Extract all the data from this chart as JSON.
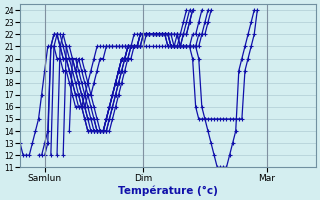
{
  "title": "",
  "xlabel": "Température (°c)",
  "ylabel": "",
  "xlim": [
    0,
    96
  ],
  "ylim": [
    11,
    24.5
  ],
  "yticks": [
    11,
    12,
    13,
    14,
    15,
    16,
    17,
    18,
    19,
    20,
    21,
    22,
    23,
    24
  ],
  "day_labels": [
    "Samlun",
    "Dim",
    "Mar"
  ],
  "day_positions": [
    8,
    40,
    80
  ],
  "background_color": "#d4eef0",
  "grid_color": "#b0ccd4",
  "line_color": "#1010aa",
  "marker": "+",
  "markersize": 3,
  "linewidth": 0.9,
  "series": [
    {
      "x_start": 0,
      "y": [
        13,
        12,
        12,
        12,
        13,
        14,
        15,
        17,
        19,
        21,
        21,
        21,
        20,
        20,
        19,
        19,
        18,
        17,
        16,
        16,
        16,
        17,
        18,
        19,
        20,
        21,
        21,
        21,
        21,
        21,
        21,
        21,
        21,
        21,
        21,
        21,
        21,
        21,
        21,
        21,
        21,
        21,
        21,
        21,
        21,
        21,
        21,
        21,
        21,
        21,
        21,
        21,
        21,
        21,
        21,
        21,
        21,
        21,
        20,
        16,
        15,
        14,
        13,
        12,
        11,
        11,
        11,
        11,
        12,
        13,
        14,
        19,
        20,
        21,
        22,
        23,
        24
      ]
    },
    {
      "x_start": 6,
      "y": [
        12,
        12,
        13,
        14,
        21,
        22,
        22,
        21,
        20,
        20,
        19,
        18,
        17,
        17,
        16,
        16,
        17,
        17,
        18,
        19,
        20,
        20,
        21,
        21,
        21,
        21,
        21,
        21,
        21,
        21,
        21,
        22,
        22,
        22,
        22,
        22,
        22,
        22,
        22,
        22,
        22,
        22,
        21,
        21,
        21,
        21,
        21,
        21,
        21,
        21,
        20,
        16,
        15,
        15,
        15,
        15,
        15,
        15,
        15,
        15,
        15,
        15,
        15,
        15,
        15,
        15,
        15,
        19,
        20,
        21,
        22,
        24
      ]
    },
    {
      "x_start": 8,
      "y": [
        12,
        13,
        21,
        22,
        22,
        21,
        20,
        20,
        19,
        18,
        17,
        16,
        16,
        15,
        14,
        14,
        14,
        14,
        14,
        14,
        14,
        14,
        15,
        16,
        17,
        18,
        19,
        20,
        20,
        21,
        21,
        21,
        21,
        22,
        22,
        22,
        22,
        22,
        22,
        22,
        22,
        22,
        22,
        22,
        21,
        21,
        21,
        21,
        21,
        21,
        21,
        22,
        22,
        23,
        24
      ]
    },
    {
      "x_start": 10,
      "y": [
        12,
        21,
        22,
        22,
        21,
        20,
        20,
        19,
        18,
        17,
        16,
        15,
        14,
        14,
        14,
        14,
        14,
        14,
        14,
        15,
        16,
        17,
        18,
        19,
        20,
        20,
        21,
        21,
        21,
        21,
        22,
        22,
        22,
        22,
        22,
        22,
        22,
        22,
        22,
        22,
        22,
        22,
        21,
        21,
        21,
        21,
        21,
        21,
        22,
        22,
        23,
        24
      ]
    },
    {
      "x_start": 12,
      "y": [
        12,
        21,
        22,
        21,
        20,
        20,
        19,
        18,
        17,
        16,
        15,
        14,
        14,
        14,
        14,
        14,
        14,
        15,
        16,
        17,
        18,
        19,
        20,
        20,
        21,
        21,
        21,
        21,
        22,
        22,
        22,
        22,
        22,
        22,
        22,
        22,
        22,
        22,
        21,
        21,
        21,
        21,
        21,
        21,
        22,
        22,
        23,
        24
      ]
    },
    {
      "x_start": 14,
      "y": [
        12,
        21,
        21,
        20,
        19,
        18,
        17,
        16,
        15,
        15,
        14,
        14,
        14,
        14,
        15,
        16,
        17,
        18,
        19,
        20,
        20,
        21,
        21,
        21,
        21,
        22,
        22,
        22,
        22,
        22,
        22,
        22,
        22,
        22,
        21,
        21,
        21,
        21,
        21,
        22,
        22,
        23,
        24
      ]
    },
    {
      "x_start": 16,
      "y": [
        14,
        20,
        20,
        19,
        18,
        17,
        16,
        15,
        15,
        14,
        14,
        14,
        15,
        16,
        17,
        18,
        19,
        20,
        20,
        21,
        21,
        21,
        21,
        22,
        22,
        22,
        22,
        22,
        22,
        22,
        22,
        22,
        22,
        21,
        21,
        21,
        21,
        22,
        22,
        23,
        24
      ]
    },
    {
      "x_start": 18,
      "y": [
        19,
        20,
        19,
        18,
        17,
        16,
        15,
        14,
        14,
        14,
        15,
        16,
        17,
        18,
        19,
        20,
        20,
        21,
        21,
        21,
        21,
        22,
        22,
        22,
        22,
        22,
        22,
        22,
        22,
        22,
        22,
        21,
        21,
        21,
        22,
        22,
        23,
        24
      ]
    },
    {
      "x_start": 20,
      "y": [
        20,
        19,
        18,
        17,
        16,
        15,
        14,
        14,
        15,
        16,
        17,
        18,
        19,
        20,
        20,
        21,
        21,
        21,
        21,
        22,
        22,
        22,
        22,
        22,
        22,
        22,
        22,
        22,
        22,
        21,
        21,
        22,
        22,
        23,
        24
      ]
    }
  ]
}
